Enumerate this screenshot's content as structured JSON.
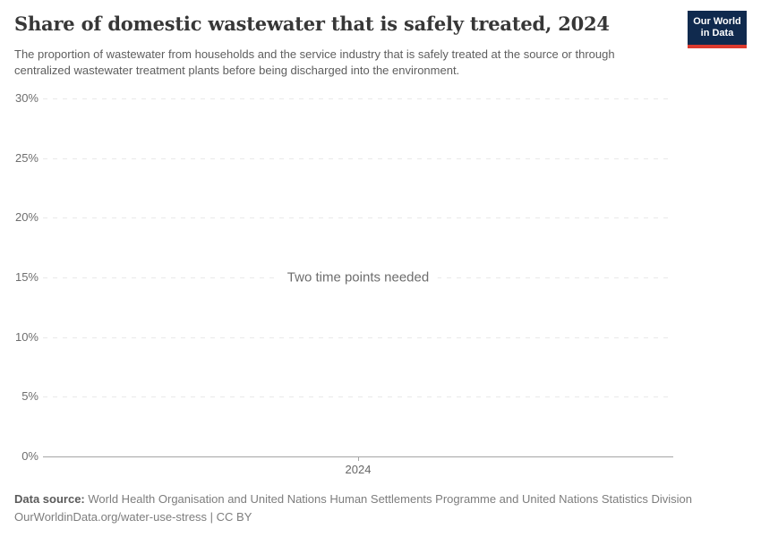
{
  "header": {
    "title": "Share of domestic wastewater that is safely treated, 2024",
    "subtitle": "The proportion of wastewater from households and the service industry that is safely treated at the source or through centralized wastewater treatment plants before being discharged into the environment.",
    "logo": {
      "line1": "Our World",
      "line2": "in Data"
    }
  },
  "chart_data": {
    "type": "line",
    "title": "Share of domestic wastewater that is safely treated, 2024",
    "year": "2024",
    "series": [],
    "empty_state_message": "Two time points needed",
    "x_axis": {
      "ticks": [
        {
          "value": 2024,
          "label": "2024"
        }
      ]
    },
    "y_axis": {
      "range": [
        0,
        30
      ],
      "unit": "%",
      "ticks": [
        {
          "value": 0,
          "label": "0%"
        },
        {
          "value": 5,
          "label": "5%"
        },
        {
          "value": 10,
          "label": "10%"
        },
        {
          "value": 15,
          "label": "15%"
        },
        {
          "value": 20,
          "label": "20%"
        },
        {
          "value": 25,
          "label": "25%"
        },
        {
          "value": 30,
          "label": "30%"
        }
      ]
    },
    "grid": "horizontal-dashed",
    "legend": "none"
  },
  "footer": {
    "source_label": "Data source:",
    "source_text": " World Health Organisation and United Nations Human Settlements Programme and United Nations Statistics Division",
    "url": "OurWorldinData.org/water-use-stress",
    "separator": " | ",
    "license": "CC BY"
  },
  "colors": {
    "background": "#ffffff",
    "title_text": "#373737",
    "subtitle_text": "#5e5e5e",
    "tick_label": "#6e6e6e",
    "gridline": "#e9e9e9",
    "axis_line": "#a5a5a5",
    "empty_message_text": "#6d6d6d",
    "footer_text": "#7d7d7d",
    "logo_background": "#102a4e",
    "logo_accent": "#dc3a2e",
    "logo_text": "#ffffff"
  }
}
